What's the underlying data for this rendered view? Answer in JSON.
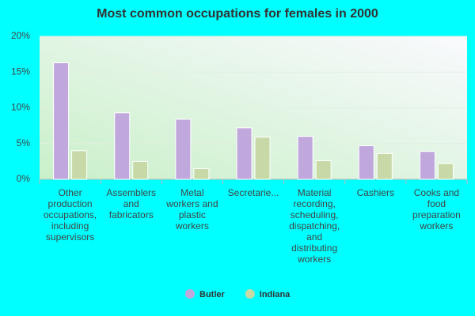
{
  "chart_data": {
    "type": "bar",
    "title": "Most common occupations for females in 2000",
    "categories": [
      "Other production occupations, including supervisors",
      "Assemblers and fabricators",
      "Metal workers and plastic workers",
      "Secretarie...",
      "Material recording, scheduling, dispatching, and distributing workers",
      "Cashiers",
      "Cooks and food preparation workers"
    ],
    "series": [
      {
        "name": "Butler",
        "color": "#c0a8dc",
        "values": [
          16.3,
          9.3,
          8.4,
          7.2,
          6.0,
          4.7,
          3.9
        ]
      },
      {
        "name": "Indiana",
        "color": "#c6d9a6",
        "values": [
          4.0,
          2.5,
          1.5,
          5.9,
          2.6,
          3.6,
          2.2
        ]
      }
    ],
    "ylim": [
      0,
      20
    ],
    "yticks": [
      {
        "value": 0,
        "label": "0%"
      },
      {
        "value": 5,
        "label": "5%"
      },
      {
        "value": 10,
        "label": "10%"
      },
      {
        "value": 15,
        "label": "15%"
      },
      {
        "value": 20,
        "label": "20%"
      }
    ],
    "grid": true
  }
}
